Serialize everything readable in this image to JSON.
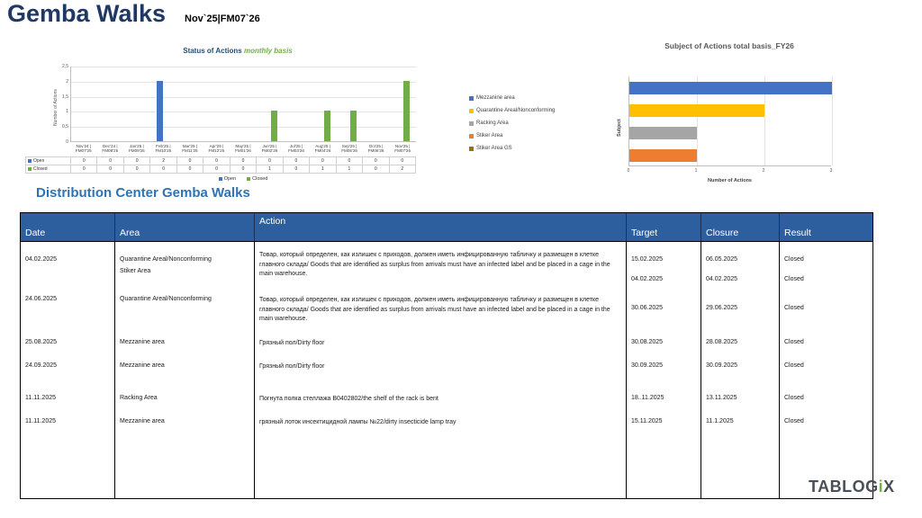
{
  "page": {
    "title": "Gemba Walks",
    "subtitle": "Nov`25|FM07`26",
    "section_title": "Distribution Center Gemba Walks"
  },
  "logo": {
    "prefix": "TABLOG",
    "i": "i",
    "suffix": "X"
  },
  "chart_data": [
    {
      "type": "bar",
      "title": "Status of Actions",
      "title_suffix": "monthly basis",
      "ylabel": "Number of Actions",
      "ylim": [
        0,
        2.5
      ],
      "yticks": [
        {
          "label": "0",
          "value": 0
        },
        {
          "label": "0,5",
          "value": 0.5
        },
        {
          "label": "1",
          "value": 1
        },
        {
          "label": "1,5",
          "value": 1.5
        },
        {
          "label": "2",
          "value": 2
        },
        {
          "label": "2,5",
          "value": 2.5
        }
      ],
      "categories": [
        {
          "line1": "Nov'24 |",
          "line2": "FM07'25"
        },
        {
          "line1": "Dec'24 |",
          "line2": "FM08'25"
        },
        {
          "line1": "Jan'25 |",
          "line2": "FM09'25"
        },
        {
          "line1": "Feb'25 |",
          "line2": "FM10'25"
        },
        {
          "line1": "Mar'25 |",
          "line2": "FM11'25"
        },
        {
          "line1": "Apr'25 |",
          "line2": "FM12'25"
        },
        {
          "line1": "May'25 |",
          "line2": "FM01'26"
        },
        {
          "line1": "Jun'25 |",
          "line2": "FM02'26"
        },
        {
          "line1": "Jul'25 |",
          "line2": "FM03'26"
        },
        {
          "line1": "Aug'25 |",
          "line2": "FM04'26"
        },
        {
          "line1": "Sep'25 |",
          "line2": "FM05'26"
        },
        {
          "line1": "Oct'25 |",
          "line2": "FM06'26"
        },
        {
          "line1": "Nov'25 |",
          "line2": "FM07'26"
        }
      ],
      "series": [
        {
          "name": "Open",
          "color": "#4472C4",
          "values": [
            0,
            0,
            0,
            2,
            0,
            0,
            0,
            0,
            0,
            0,
            0,
            0,
            0
          ]
        },
        {
          "name": "Closed",
          "color": "#70AD47",
          "values": [
            0,
            0,
            0,
            0,
            0,
            0,
            0,
            1,
            0,
            1,
            1,
            0,
            2
          ]
        }
      ],
      "legend_position": "bottom",
      "grid": true
    },
    {
      "type": "bar",
      "orientation": "horizontal",
      "title": "Subject of Actions total basis_FY26",
      "xlabel": "Number of Actions",
      "ylabel": "Subject",
      "xlim": [
        0,
        3
      ],
      "xticks": [
        {
          "label": "0",
          "value": 0
        },
        {
          "label": "1",
          "value": 1
        },
        {
          "label": "2",
          "value": 2
        },
        {
          "label": "3",
          "value": 3
        }
      ],
      "legend": [
        {
          "label": "Mezzanine area",
          "color": "#4472C4"
        },
        {
          "label": "Quarantine Areal/Nonconforming",
          "color": "#FFC000"
        },
        {
          "label": "Racking Area",
          "color": "#A5A5A5"
        },
        {
          "label": "Stiker Area",
          "color": "#ED7D31"
        },
        {
          "label": "Stiker Area GS",
          "color": "#997300"
        }
      ],
      "bars": [
        {
          "label": "Mezzanine area",
          "color": "#4472C4",
          "value": 3
        },
        {
          "label": "Quarantine Areal/Nonconforming",
          "color": "#FFC000",
          "value": 2
        },
        {
          "label": "Racking Area",
          "color": "#A5A5A5",
          "value": 1
        },
        {
          "label": "Stiker Area",
          "color": "#ED7D31",
          "value": 1
        }
      ],
      "legend_position": "left",
      "grid": true
    }
  ],
  "table": {
    "headers": [
      "Date",
      "Area",
      "Action",
      "Target",
      "Closure",
      "Result"
    ],
    "rows": [
      {
        "date": "04.02.2025",
        "area_lines": [
          "Quarantine Areal/Nonconforming",
          "Stiker Area"
        ],
        "action": "Товар, который определен, как излишек с приходов, должен иметь инфицированную табличку и размещен в клетке главного склада/ Goods that are identified as surplus from arrivals must have an infected label and be placed in a cage in the main warehouse.",
        "targets": [
          "15.02.2025",
          "04.02.2025"
        ],
        "closures": [
          "06.05.2025",
          "04.02.2025"
        ],
        "results": [
          "Closed",
          "Closed"
        ]
      },
      {
        "date": "24.06.2025",
        "area_lines": [
          "Quarantine Areal/Nonconforming"
        ],
        "action": "Товар, который определен, как излишек с приходов, должен иметь инфицированную табличку и размещен в клетке главного склада/ Goods that are identified as surplus from arrivals must have an infected label and be placed in a cage in the main warehouse.",
        "targets": [
          "30.06.2025"
        ],
        "closures": [
          "29.06.2025"
        ],
        "results": [
          "Closed"
        ]
      },
      {
        "date": "25.08.2025",
        "area_lines": [
          "Mezzanine area"
        ],
        "action": "Грязный пол/Dirty floor",
        "targets": [
          "30.08.2025"
        ],
        "closures": [
          "28.08.2025"
        ],
        "results": [
          "Closed"
        ]
      },
      {
        "date": "24.09.2025",
        "area_lines": [
          "Mezzanine area"
        ],
        "action": "Грязный пол/Dirty floor",
        "targets": [
          "30.09.2025"
        ],
        "closures": [
          "30.09.2025"
        ],
        "results": [
          "Closed"
        ]
      },
      {
        "date": "11.11.2025",
        "area_lines": [
          "Racking Area"
        ],
        "action": "Погнута полка стеллажа B0402802/the shelf of the rack is bent",
        "targets": [
          "18..11.2025"
        ],
        "closures": [
          "13.11.2025"
        ],
        "results": [
          "Closed"
        ]
      },
      {
        "date": "11.11.2025",
        "area_lines": [
          "Mezzanine area"
        ],
        "action": "грязный лоток инсектицидной лампы №22/dirty insecticide lamp tray",
        "targets": [
          "15.11.2025"
        ],
        "closures": [
          "11.1.2025"
        ],
        "results": [
          "Closed"
        ]
      }
    ]
  }
}
